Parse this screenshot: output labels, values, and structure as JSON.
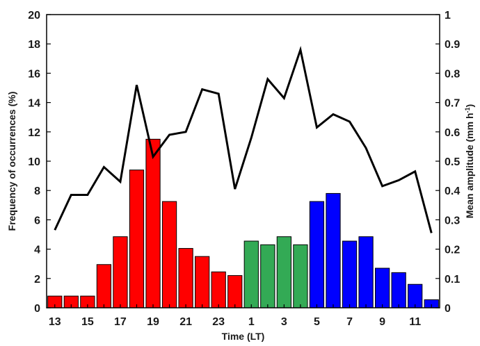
{
  "chart_data": {
    "type": "bar",
    "categories": [
      "13",
      "14",
      "15",
      "16",
      "17",
      "18",
      "19",
      "20",
      "21",
      "22",
      "23",
      "0",
      "1",
      "2",
      "3",
      "4",
      "5",
      "6",
      "7",
      "8",
      "9",
      "10",
      "11",
      "12"
    ],
    "x_tick_labels": [
      "13",
      "15",
      "17",
      "19",
      "21",
      "23",
      "1",
      "3",
      "5",
      "7",
      "9",
      "11"
    ],
    "xlabel": "Time (LT)",
    "ylabel_left": "Frequency of occurrences (%)",
    "ylabel_right": {
      "main": "Mean amplitude (mm h",
      "sup": "-1",
      "close": ")"
    },
    "ylim_left": [
      0,
      20
    ],
    "ylim_right": [
      0,
      1
    ],
    "y_ticks_left": [
      "0",
      "2",
      "4",
      "6",
      "8",
      "10",
      "12",
      "14",
      "16",
      "18",
      "20"
    ],
    "y_ticks_right": [
      "0",
      "0.1",
      "0.2",
      "0.3",
      "0.4",
      "0.5",
      "0.6",
      "0.7",
      "0.8",
      "0.9",
      "1"
    ],
    "grid": false,
    "bar_series": {
      "name": "",
      "values": [
        0.8,
        0.8,
        0.8,
        2.95,
        4.85,
        9.4,
        11.5,
        7.25,
        4.05,
        3.5,
        2.45,
        2.2,
        4.55,
        4.3,
        4.85,
        4.3,
        7.25,
        7.8,
        4.55,
        4.85,
        2.7,
        2.4,
        1.6,
        0.55
      ],
      "colors": [
        "#ff0000",
        "#ff0000",
        "#ff0000",
        "#ff0000",
        "#ff0000",
        "#ff0000",
        "#ff0000",
        "#ff0000",
        "#ff0000",
        "#ff0000",
        "#ff0000",
        "#ff0000",
        "#33aa55",
        "#33aa55",
        "#33aa55",
        "#33aa55",
        "#0000ff",
        "#0000ff",
        "#0000ff",
        "#0000ff",
        "#0000ff",
        "#0000ff",
        "#0000ff",
        "#0000ff"
      ]
    },
    "line_series": {
      "name": "",
      "axis": "right",
      "values": [
        0.265,
        0.385,
        0.385,
        0.48,
        0.43,
        0.76,
        0.515,
        0.59,
        0.6,
        0.745,
        0.73,
        0.405,
        0.58,
        0.78,
        0.715,
        0.88,
        0.615,
        0.66,
        0.635,
        0.545,
        0.415,
        0.435,
        0.465,
        0.255
      ],
      "color": "#000000"
    }
  }
}
